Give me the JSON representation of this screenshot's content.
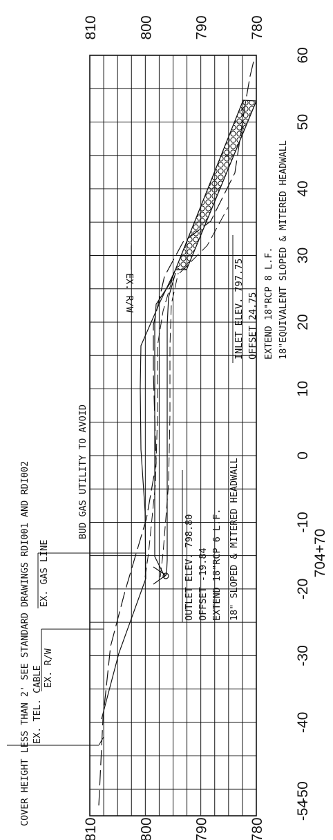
{
  "note": "COVER HEIGHT LESS THAN 2' SEE STANDARD DRAWINGS RDI001 AND RDI002",
  "station": "704+70",
  "elevation_labels": [
    "810",
    "800",
    "790",
    "780"
  ],
  "offset_labels": [
    "-54",
    "-50",
    "-40",
    "-30",
    "-20",
    "-10",
    "0",
    "10",
    "20",
    "30",
    "40",
    "50",
    "60"
  ],
  "annotations": {
    "ex_tel_cable": "EX. TEL. CABLE",
    "ex_rw_left": "EX. R/W",
    "ex_gas_line": "EX. GAS LINE",
    "bud_gas": "BUD GAS UTILITY TO AVOID",
    "ex_rw_right": "EX. R/W"
  },
  "outlet": {
    "line1": "OUTLET ELEV. 798.80",
    "line2": "OFFSET -19.84",
    "line3": "EXTEND 18\"RCP 6 L.F.",
    "line4": "18\" SLOPED & MITERED HEADWALL"
  },
  "inlet": {
    "line1": "INLET ELEV. 797.75",
    "line2": "OFFSET 24.75",
    "line3": "EXTEND 18\"RCP 8 L.F.",
    "line4": "18\"EQUIVALENT SLOPED & MITERED HEADWALL"
  },
  "colors": {
    "ink": "#111111",
    "paper": "#ffffff"
  }
}
